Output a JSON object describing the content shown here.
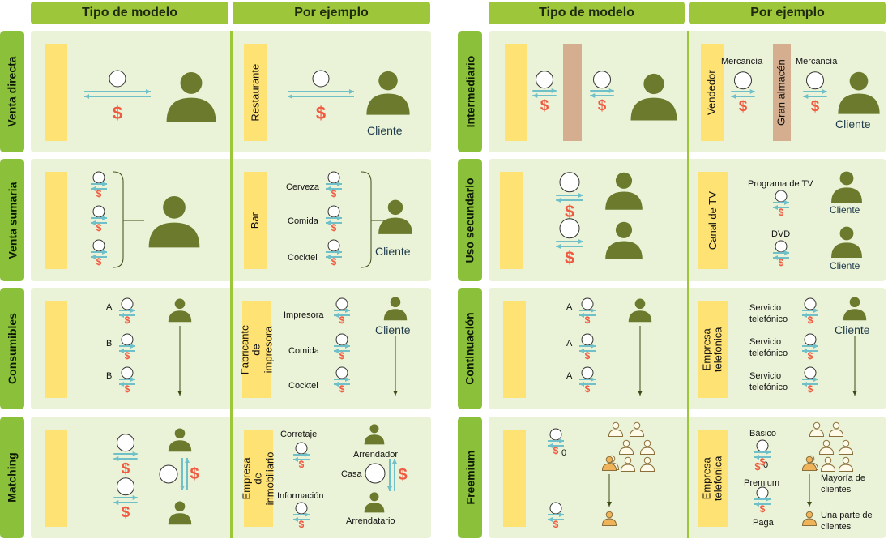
{
  "headers": {
    "left_model": "Tipo de modelo",
    "left_example": "Por ejemplo",
    "right_model": "Tipo de modelo",
    "right_example": "Por ejemplo"
  },
  "rows_left": [
    "Venta directa",
    "Venta sumaria",
    "Consumibles",
    "Matching"
  ],
  "rows_right": [
    "Intermediario",
    "Uso secundario",
    "Continuación",
    "Freemium"
  ],
  "venta_directa": {
    "example_label": "Restaurante",
    "customer": "Cliente"
  },
  "venta_sumaria": {
    "example_label": "Bar",
    "items": [
      "Cerveza",
      "Comida",
      "Cocktel"
    ],
    "customer": "Cliente"
  },
  "consumibles": {
    "model_items": [
      "A",
      "B",
      "B"
    ],
    "example_label": "Fabricante de impresora",
    "items": [
      "Impresora",
      "Comida",
      "Cocktel"
    ],
    "customer": "Cliente"
  },
  "matching": {
    "example_label": "Empresa de inmobiliario",
    "corretaje": "Corretaje",
    "informacion": "Información",
    "arrendador": "Arrendador",
    "casa": "Casa",
    "arrendatario": "Arrendatario"
  },
  "intermediario": {
    "example_label": "Vendedor",
    "middle_label": "Gran almacén",
    "goods_1": "Mercancía",
    "goods_2": "Mercancía",
    "customer": "Cliente"
  },
  "uso_secundario": {
    "example_label": "Canal de TV",
    "item_1": "Programa de TV",
    "item_2": "DVD",
    "customer_1": "Cliente",
    "customer_2": "Cliente"
  },
  "continuacion": {
    "model_items": [
      "A",
      "A",
      "A"
    ],
    "example_label": "Empresa telefonica",
    "items": [
      "Servicio telefónico",
      "Servicio telefónico",
      "Servicio telefónico"
    ],
    "customer": "Cliente"
  },
  "freemium": {
    "zero": "0",
    "example_label": "Empresa telefonica",
    "basic": "Básico",
    "basic_price": "0",
    "premium": "Premium",
    "premium_price": "Paga",
    "majority": "Mayoría de clientes",
    "minority": "Una parte de clientes"
  },
  "colors": {
    "header": "#9dc63a",
    "cell": "#eaf3d7",
    "yellow": "#ffe274",
    "person": "#6b7a2c",
    "arrow": "#6fc0c9",
    "dollar": "#ef5a41",
    "brown": "#d4ae8e",
    "orange": "#efb45a"
  }
}
